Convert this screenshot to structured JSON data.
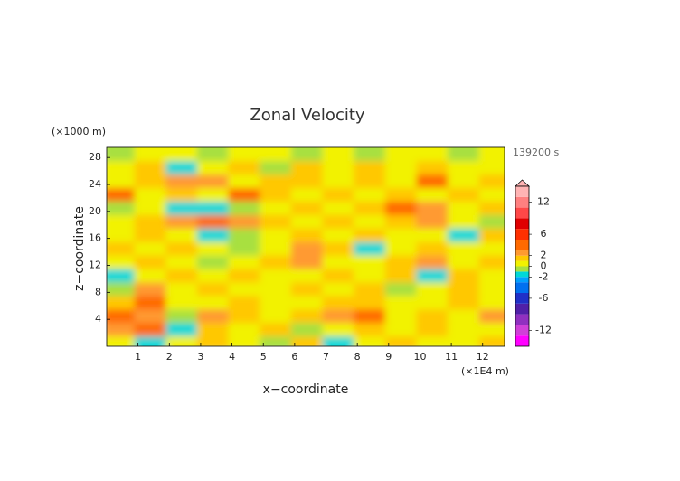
{
  "chart_data": {
    "type": "contour",
    "title": "Zonal Velocity",
    "x_label": "x−coordinate",
    "y_label": "z−coordinate",
    "x_unit": "(×1E4 m)",
    "y_unit": "(×1000 m)",
    "time_label": "139200 s",
    "xlim": [
      0,
      12.7
    ],
    "ylim": [
      0,
      29.5
    ],
    "xticks": [
      1,
      2,
      3,
      4,
      5,
      6,
      7,
      8,
      9,
      10,
      11,
      12
    ],
    "yticks": [
      4,
      8,
      12,
      16,
      20,
      24,
      28
    ],
    "field": {
      "x": [
        0.5,
        1.5,
        2.5,
        3.5,
        4.5,
        5.5,
        6.5,
        7.5,
        8.5,
        9.5,
        10.5,
        11.5,
        12.5
      ],
      "z": [
        1,
        3,
        5,
        7,
        9,
        11,
        13,
        15,
        17,
        19,
        21,
        23,
        25,
        27,
        29
      ],
      "values": [
        [
          0,
          -2,
          0,
          1,
          0,
          -1,
          1,
          -2,
          0,
          1,
          0,
          0,
          1
        ],
        [
          2,
          3,
          -2,
          1,
          0,
          1,
          -1,
          0,
          1,
          0,
          1,
          0,
          0
        ],
        [
          3,
          2,
          -1,
          2,
          1,
          0,
          1,
          2,
          3,
          0,
          1,
          0,
          2
        ],
        [
          1,
          3,
          0,
          0,
          1,
          0,
          0,
          1,
          1,
          0,
          0,
          1,
          0
        ],
        [
          -1,
          2,
          0,
          1,
          0,
          0,
          1,
          0,
          1,
          -1,
          0,
          1,
          0
        ],
        [
          -2,
          0,
          1,
          0,
          1,
          0,
          0,
          1,
          0,
          1,
          -2,
          1,
          0
        ],
        [
          0,
          1,
          0,
          -1,
          0,
          1,
          2,
          0,
          0,
          1,
          2,
          0,
          1
        ],
        [
          1,
          0,
          1,
          0,
          -1,
          0,
          2,
          1,
          -2,
          0,
          1,
          0,
          0
        ],
        [
          0,
          1,
          0,
          -2,
          -1,
          0,
          1,
          0,
          1,
          0,
          0,
          -2,
          1
        ],
        [
          0,
          1,
          2,
          3,
          2,
          1,
          0,
          1,
          0,
          1,
          2,
          0,
          -1
        ],
        [
          -1,
          0,
          -2,
          -2,
          -1,
          0,
          1,
          0,
          1,
          3,
          2,
          0,
          1
        ],
        [
          3,
          0,
          1,
          0,
          3,
          1,
          0,
          1,
          0,
          1,
          0,
          1,
          0
        ],
        [
          0,
          1,
          2,
          2,
          0,
          1,
          1,
          0,
          1,
          0,
          3,
          0,
          1
        ],
        [
          0,
          1,
          -2,
          0,
          1,
          -1,
          1,
          0,
          1,
          0,
          1,
          0,
          0
        ],
        [
          -1,
          0,
          0,
          -1,
          0,
          0,
          -1,
          0,
          -1,
          0,
          0,
          -1,
          0
        ]
      ]
    },
    "colorbar": {
      "clim": [
        -15,
        15
      ],
      "levels": [
        -15,
        -13,
        -11,
        -9,
        -7,
        -5,
        -3,
        -2,
        -1,
        0,
        1,
        2,
        3,
        5,
        7,
        9,
        11,
        13,
        15
      ],
      "colors": [
        "#ff00ff",
        "#d040d8",
        "#9030c0",
        "#5020a8",
        "#2030c8",
        "#0070f0",
        "#00a0ff",
        "#00d8d8",
        "#a8e040",
        "#f2f200",
        "#ffc800",
        "#ff9a30",
        "#ff6a00",
        "#ff3000",
        "#e00000",
        "#ff4848",
        "#ff8080",
        "#ffb4b4"
      ],
      "ticks": [
        -12,
        -6,
        -2,
        0,
        2,
        6,
        12
      ]
    }
  }
}
